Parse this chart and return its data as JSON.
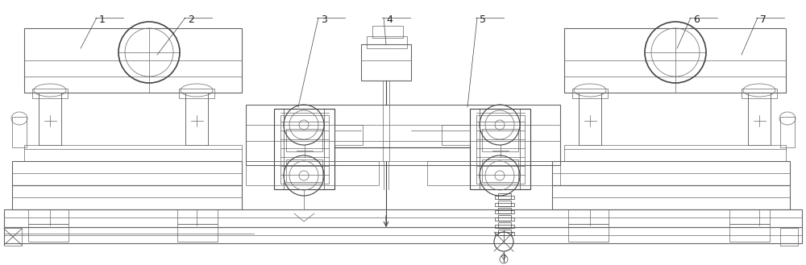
{
  "bg_color": "#ffffff",
  "lc": "#aaaaaa",
  "dc": "#444444",
  "mc": "#666666",
  "figsize": [
    10.0,
    3.29
  ],
  "dpi": 100
}
